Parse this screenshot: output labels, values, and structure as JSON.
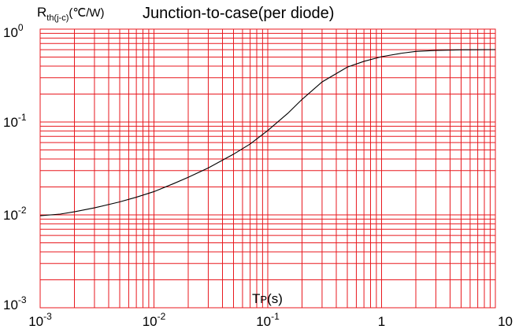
{
  "chart_data": {
    "type": "line",
    "title": "Junction-to-case(per diode)",
    "ylabel": {
      "main": "R",
      "sub": "th(j-c)",
      "unit": "(℃/W)"
    },
    "xlabel": {
      "main": "T",
      "sub": "P",
      "unit": "(s)"
    },
    "x_scale": "log",
    "y_scale": "log",
    "xlim": [
      0.001,
      10
    ],
    "ylim": [
      0.001,
      1
    ],
    "x_ticks": [
      {
        "value": 0.001,
        "base": "10",
        "exp": "-3"
      },
      {
        "value": 0.01,
        "base": "10",
        "exp": "-2"
      },
      {
        "value": 0.1,
        "base": "10",
        "exp": "-1"
      },
      {
        "value": 1,
        "base": "1",
        "exp": ""
      },
      {
        "value": 10,
        "base": "10",
        "exp": ""
      }
    ],
    "y_ticks": [
      {
        "value": 0.001,
        "base": "10",
        "exp": "-3"
      },
      {
        "value": 0.01,
        "base": "10",
        "exp": "-2"
      },
      {
        "value": 0.1,
        "base": "10",
        "exp": "-1"
      },
      {
        "value": 1,
        "base": "10",
        "exp": "0"
      }
    ],
    "grid": true,
    "grid_color": "#e8191f",
    "line_color": "#000000",
    "series": [
      {
        "x": [
          0.001,
          0.0015,
          0.002,
          0.003,
          0.005,
          0.007,
          0.01,
          0.015,
          0.02,
          0.03,
          0.05,
          0.07,
          0.1,
          0.15,
          0.2,
          0.3,
          0.5,
          0.7,
          1,
          1.5,
          2,
          3,
          5,
          7,
          10
        ],
        "values": [
          0.0098,
          0.0102,
          0.0108,
          0.0119,
          0.0138,
          0.0155,
          0.0178,
          0.0218,
          0.0254,
          0.032,
          0.045,
          0.058,
          0.081,
          0.124,
          0.175,
          0.27,
          0.39,
          0.45,
          0.505,
          0.55,
          0.575,
          0.59,
          0.598,
          0.6,
          0.602
        ]
      }
    ]
  }
}
